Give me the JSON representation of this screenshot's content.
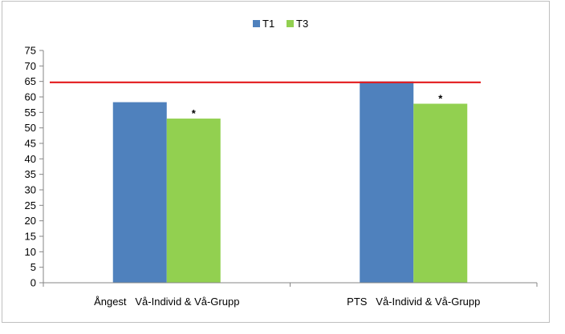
{
  "chart_data": {
    "type": "bar",
    "categories": [
      "Ångest   Vå-Individ & Vå-Grupp",
      "PTS   Vå-Individ & Vå-Grupp"
    ],
    "series": [
      {
        "name": "T1",
        "values": [
          58.3,
          65
        ],
        "color": "#4f81bd"
      },
      {
        "name": "T3",
        "values": [
          53,
          57.8
        ],
        "color": "#92d050"
      }
    ],
    "annotations": [
      {
        "series": "T3",
        "category_index": 0,
        "text": "*"
      },
      {
        "series": "T3",
        "category_index": 1,
        "text": "*"
      }
    ],
    "reference_line": {
      "value": 64.7,
      "color": "#e31a1c"
    },
    "yticks": [
      "0",
      "5",
      "10",
      "15",
      "20",
      "25",
      "30",
      "35",
      "40",
      "45",
      "50",
      "55",
      "60",
      "65",
      "70",
      "75"
    ],
    "ylim": [
      0,
      75
    ],
    "legend_position": "top-center",
    "grid": false,
    "title": "",
    "xlabel": "",
    "ylabel": ""
  }
}
